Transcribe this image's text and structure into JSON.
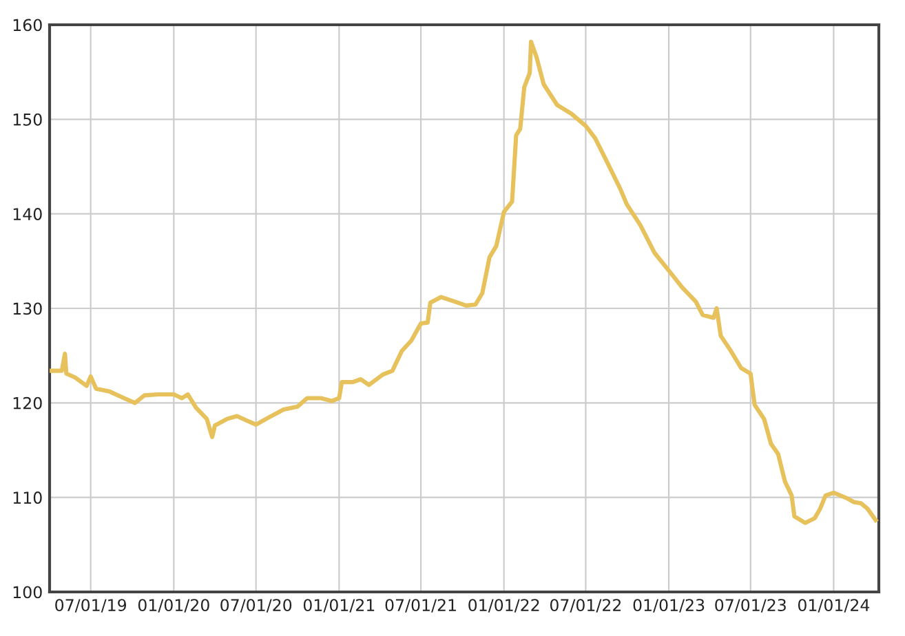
{
  "chart_data": {
    "type": "line",
    "grid": true,
    "marker": "none",
    "line_style": "solid",
    "xlim": [
      "2019-04-01",
      "2024-04-10"
    ],
    "ylim": [
      100,
      160
    ],
    "yticks": [
      100,
      110,
      120,
      130,
      140,
      150,
      160
    ],
    "xticks": [
      {
        "value": "2019-07-01",
        "label": "07/01/19"
      },
      {
        "value": "2020-01-01",
        "label": "01/01/20"
      },
      {
        "value": "2020-07-01",
        "label": "07/01/20"
      },
      {
        "value": "2021-01-01",
        "label": "01/01/21"
      },
      {
        "value": "2021-07-01",
        "label": "07/01/21"
      },
      {
        "value": "2022-01-01",
        "label": "01/01/22"
      },
      {
        "value": "2022-07-01",
        "label": "07/01/22"
      },
      {
        "value": "2023-01-01",
        "label": "01/01/23"
      },
      {
        "value": "2023-07-01",
        "label": "07/01/23"
      },
      {
        "value": "2024-01-01",
        "label": "01/01/24"
      }
    ],
    "x": [
      "2019-04-01",
      "2019-04-28",
      "2019-05-05",
      "2019-05-08",
      "2019-05-27",
      "2019-06-22",
      "2019-07-01",
      "2019-07-13",
      "2019-08-12",
      "2019-09-13",
      "2019-10-07",
      "2019-10-28",
      "2019-11-28",
      "2020-01-01",
      "2020-01-19",
      "2020-02-01",
      "2020-02-19",
      "2020-03-14",
      "2020-03-26",
      "2020-04-01",
      "2020-04-28",
      "2020-05-20",
      "2020-06-07",
      "2020-07-01",
      "2020-07-31",
      "2020-08-31",
      "2020-10-01",
      "2020-10-22",
      "2020-11-22",
      "2020-12-16",
      "2021-01-01",
      "2021-01-07",
      "2021-01-31",
      "2021-02-18",
      "2021-03-08",
      "2021-04-08",
      "2021-04-29",
      "2021-05-20",
      "2021-06-10",
      "2021-07-01",
      "2021-07-16",
      "2021-07-22",
      "2021-08-15",
      "2021-09-15",
      "2021-10-09",
      "2021-10-30",
      "2021-11-14",
      "2021-11-30",
      "2021-12-15",
      "2022-01-01",
      "2022-01-19",
      "2022-01-28",
      "2022-02-06",
      "2022-02-15",
      "2022-02-27",
      "2022-03-02",
      "2022-03-14",
      "2022-03-30",
      "2022-04-29",
      "2022-05-30",
      "2022-07-01",
      "2022-07-22",
      "2022-08-15",
      "2022-09-15",
      "2022-09-30",
      "2022-10-30",
      "2022-11-30",
      "2023-01-01",
      "2023-01-31",
      "2023-03-02",
      "2023-03-17",
      "2023-04-10",
      "2023-04-17",
      "2023-04-26",
      "2023-05-17",
      "2023-06-10",
      "2023-07-01",
      "2023-07-10",
      "2023-07-31",
      "2023-08-15",
      "2023-08-31",
      "2023-09-15",
      "2023-09-30",
      "2023-10-06",
      "2023-10-30",
      "2023-11-20",
      "2023-12-02",
      "2023-12-14",
      "2024-01-01",
      "2024-01-31",
      "2024-02-15",
      "2024-03-01",
      "2024-03-16",
      "2024-04-03"
    ],
    "series": [
      {
        "color": "#e6c15c",
        "values": [
          123.4,
          123.4,
          125.2,
          123.1,
          122.7,
          121.8,
          122.8,
          121.5,
          121.2,
          120.5,
          120.0,
          120.8,
          120.9,
          120.9,
          120.5,
          120.9,
          119.5,
          118.3,
          116.4,
          117.6,
          118.3,
          118.6,
          118.2,
          117.7,
          118.5,
          119.3,
          119.6,
          120.5,
          120.5,
          120.2,
          120.5,
          122.2,
          122.2,
          122.5,
          121.9,
          123.0,
          123.4,
          125.5,
          126.6,
          128.4,
          128.5,
          130.6,
          131.2,
          130.7,
          130.3,
          130.4,
          131.6,
          135.4,
          136.6,
          140.2,
          141.3,
          148.3,
          149.0,
          153.4,
          154.9,
          158.2,
          156.6,
          153.7,
          151.5,
          150.6,
          149.3,
          148.0,
          145.7,
          142.7,
          141.0,
          138.8,
          135.9,
          134.0,
          132.2,
          130.7,
          129.3,
          129.0,
          130.0,
          127.1,
          125.6,
          123.7,
          123.1,
          119.8,
          118.3,
          115.7,
          114.6,
          111.7,
          110.2,
          108.0,
          107.3,
          107.8,
          108.8,
          110.2,
          110.5,
          109.9,
          109.5,
          109.4,
          108.8,
          107.6
        ]
      }
    ]
  }
}
